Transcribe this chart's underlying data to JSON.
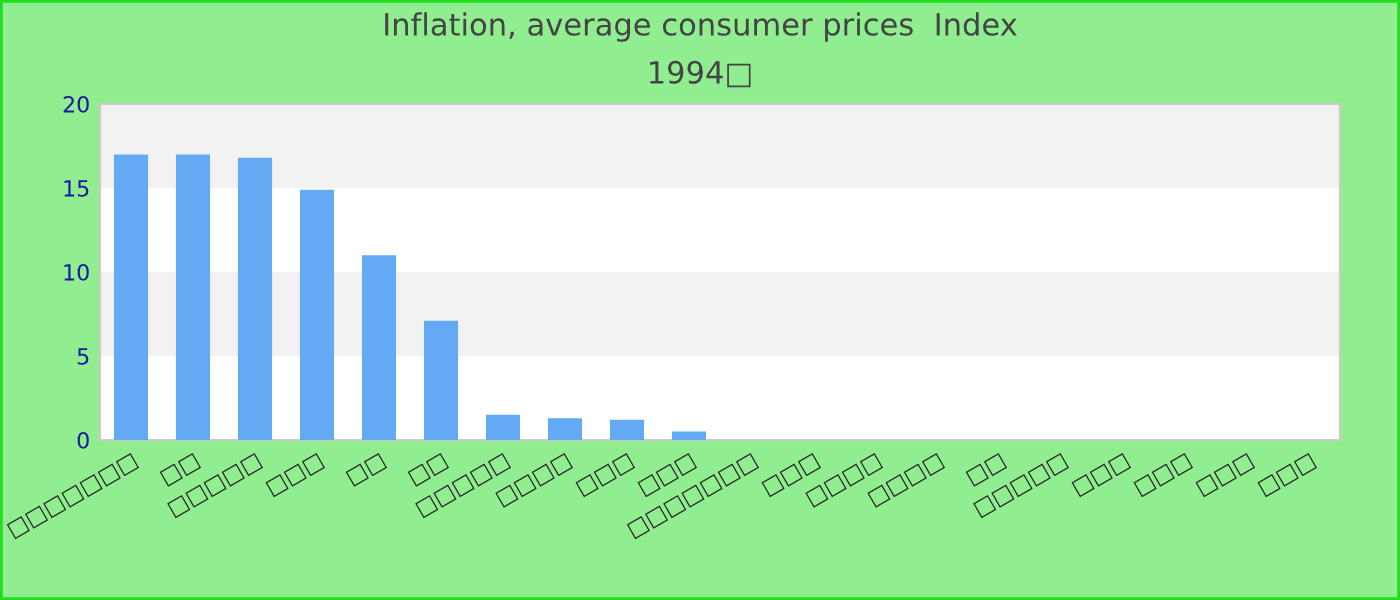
{
  "chart_data": {
    "type": "bar",
    "title": "Inflation, average consumer prices  Index",
    "subtitle": "1994□",
    "categories": [
      "□□□□□□□",
      "□□",
      "□□□□□",
      "□□□",
      "□□",
      "□□",
      "□□□□□",
      "□□□□",
      "□□□",
      "□□□",
      "□□□□□□□",
      "□□□",
      "□□□□",
      "□□□□",
      "□□",
      "□□□□□",
      "□□□",
      "□□□",
      "□□□",
      "□□□"
    ],
    "values": [
      17.0,
      17.0,
      16.8,
      14.9,
      11.0,
      7.1,
      1.5,
      1.3,
      1.2,
      0.5,
      null,
      null,
      null,
      null,
      null,
      null,
      null,
      null,
      null,
      null
    ],
    "color": "#63a9f4",
    "ylim": [
      0,
      20
    ],
    "yticks": [
      0,
      5,
      10,
      15,
      20
    ],
    "bands": [
      {
        "axis": "y",
        "from": 5,
        "to": 10,
        "color": "#f2f2f2"
      },
      {
        "axis": "y",
        "from": 15,
        "to": 20,
        "color": "#f2f2f2"
      }
    ]
  }
}
